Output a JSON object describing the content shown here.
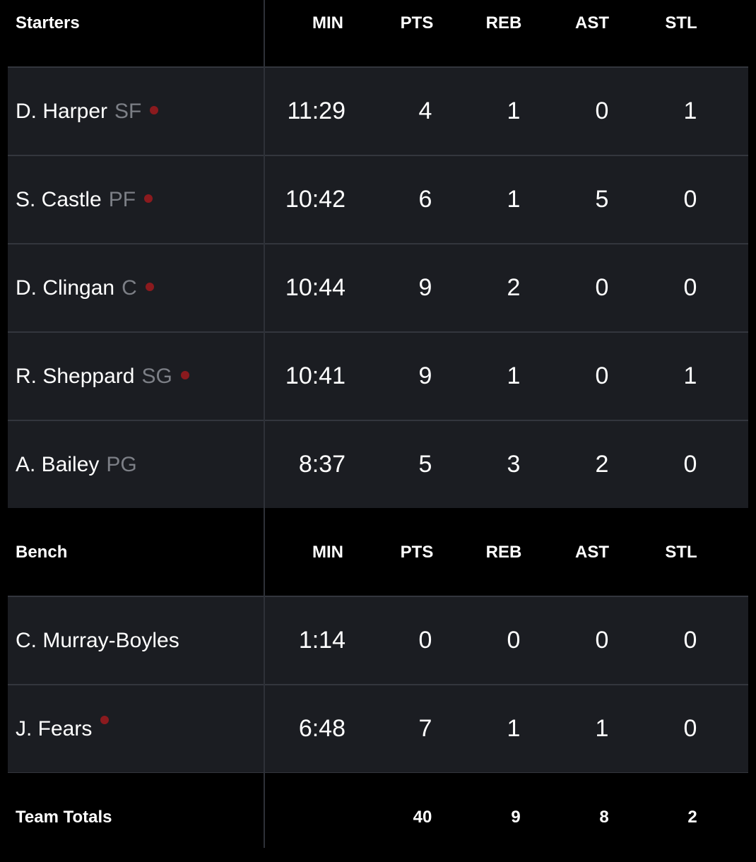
{
  "columns": [
    "MIN",
    "PTS",
    "REB",
    "AST",
    "STL"
  ],
  "starters": {
    "title": "Starters",
    "players": [
      {
        "name": "D. Harper",
        "pos": "SF",
        "dot": true,
        "min": "11:29",
        "pts": "4",
        "reb": "1",
        "ast": "0",
        "stl": "1"
      },
      {
        "name": "S. Castle",
        "pos": "PF",
        "dot": true,
        "min": "10:42",
        "pts": "6",
        "reb": "1",
        "ast": "5",
        "stl": "0"
      },
      {
        "name": "D. Clingan",
        "pos": "C",
        "dot": true,
        "min": "10:44",
        "pts": "9",
        "reb": "2",
        "ast": "0",
        "stl": "0"
      },
      {
        "name": "R. Sheppard",
        "pos": "SG",
        "dot": true,
        "min": "10:41",
        "pts": "9",
        "reb": "1",
        "ast": "0",
        "stl": "1"
      },
      {
        "name": "A. Bailey",
        "pos": "PG",
        "dot": false,
        "min": "8:37",
        "pts": "5",
        "reb": "3",
        "ast": "2",
        "stl": "0"
      }
    ]
  },
  "bench": {
    "title": "Bench",
    "players": [
      {
        "name": "C. Murray-Boyles",
        "pos": "",
        "dot": false,
        "min": "1:14",
        "pts": "0",
        "reb": "0",
        "ast": "0",
        "stl": "0"
      },
      {
        "name": "J. Fears",
        "pos": "",
        "dot": true,
        "min": "6:48",
        "pts": "7",
        "reb": "1",
        "ast": "1",
        "stl": "0"
      }
    ]
  },
  "totals": {
    "label": "Team Totals",
    "pts": "40",
    "reb": "9",
    "ast": "8",
    "stl": "2"
  },
  "colors": {
    "background": "#000000",
    "row_background": "#1b1d22",
    "divider": "#33363d",
    "position_text": "#7c7f86",
    "status_dot": "#8b1a1e"
  },
  "icons": {
    "status_dot": "red-dot-icon"
  }
}
